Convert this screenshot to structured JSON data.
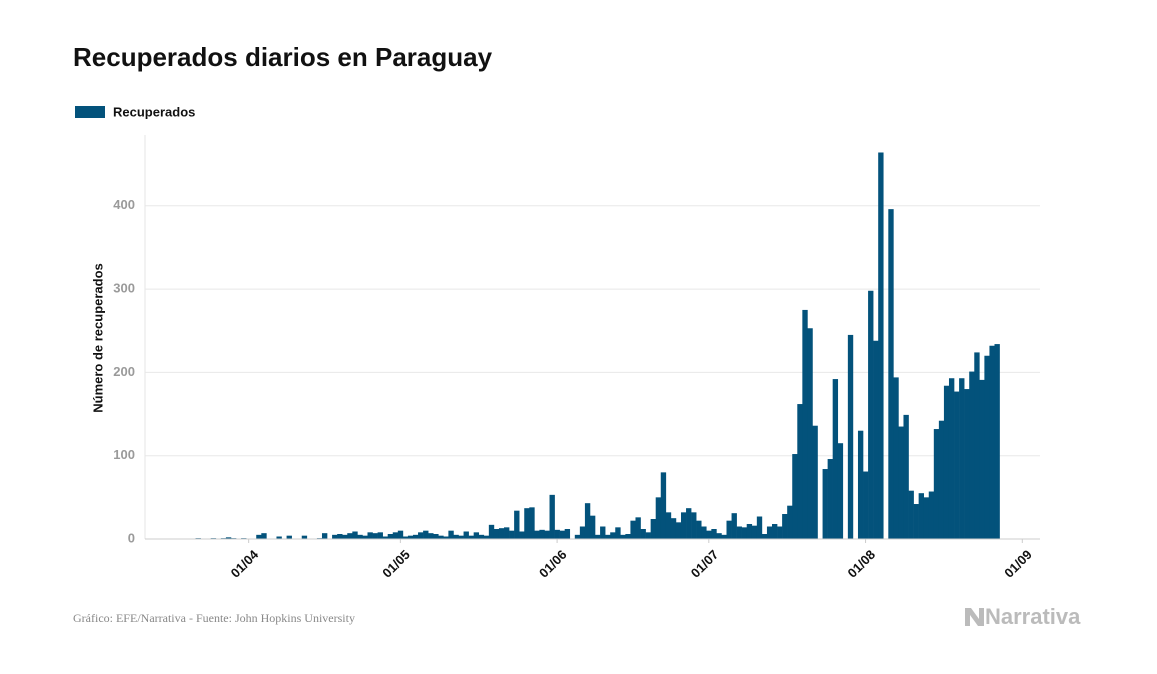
{
  "chart_data": {
    "type": "bar",
    "title": "Recuperados diarios en Paraguay",
    "y_label": "Número de recuperados",
    "source": "Gráfico: EFE/Narrativa - Fuente: John Hopkins University",
    "logo": "Narrativa",
    "legend": "top-left",
    "grid": true,
    "ylim": [
      0,
      485
    ],
    "yticks": [
      0,
      100,
      200,
      300,
      400
    ],
    "xticks": [
      "01/04",
      "01/05",
      "01/06",
      "01/07",
      "01/08",
      "01/09"
    ],
    "categories": [
      "12/03",
      "13/03",
      "14/03",
      "15/03",
      "16/03",
      "17/03",
      "18/03",
      "19/03",
      "20/03",
      "21/03",
      "22/03",
      "23/03",
      "24/03",
      "25/03",
      "26/03",
      "27/03",
      "28/03",
      "29/03",
      "30/03",
      "31/03",
      "01/04",
      "02/04",
      "03/04",
      "04/04",
      "05/04",
      "06/04",
      "07/04",
      "08/04",
      "09/04",
      "10/04",
      "11/04",
      "12/04",
      "13/04",
      "14/04",
      "15/04",
      "16/04",
      "17/04",
      "18/04",
      "19/04",
      "20/04",
      "21/04",
      "22/04",
      "23/04",
      "24/04",
      "25/04",
      "26/04",
      "27/04",
      "28/04",
      "29/04",
      "30/04",
      "01/05",
      "02/05",
      "03/05",
      "04/05",
      "05/05",
      "06/05",
      "07/05",
      "08/05",
      "09/05",
      "10/05",
      "11/05",
      "12/05",
      "13/05",
      "14/05",
      "15/05",
      "16/05",
      "17/05",
      "18/05",
      "19/05",
      "20/05",
      "21/05",
      "22/05",
      "23/05",
      "24/05",
      "25/05",
      "26/05",
      "27/05",
      "28/05",
      "29/05",
      "30/05",
      "31/05",
      "01/06",
      "02/06",
      "03/06",
      "04/06",
      "05/06",
      "06/06",
      "07/06",
      "08/06",
      "09/06",
      "10/06",
      "11/06",
      "12/06",
      "13/06",
      "14/06",
      "15/06",
      "16/06",
      "17/06",
      "18/06",
      "19/06",
      "20/06",
      "21/06",
      "22/06",
      "23/06",
      "24/06",
      "25/06",
      "26/06",
      "27/06",
      "28/06",
      "29/06",
      "30/06",
      "01/07",
      "02/07",
      "03/07",
      "04/07",
      "05/07",
      "06/07",
      "07/07",
      "08/07",
      "09/07",
      "10/07",
      "11/07",
      "12/07",
      "13/07",
      "14/07",
      "15/07",
      "16/07",
      "17/07",
      "18/07",
      "19/07",
      "20/07",
      "21/07",
      "22/07",
      "23/07",
      "24/07",
      "25/07",
      "26/07",
      "27/07",
      "28/07",
      "29/07",
      "30/07",
      "31/07",
      "01/08",
      "02/08",
      "03/08",
      "04/08",
      "05/08",
      "06/08",
      "07/08",
      "08/08",
      "09/08",
      "10/08",
      "11/08",
      "12/08",
      "13/08",
      "14/08",
      "15/08",
      "16/08",
      "17/08",
      "18/08",
      "19/08",
      "20/08",
      "21/08",
      "22/08",
      "23/08",
      "24/08",
      "25/08",
      "26/08",
      "27/08",
      "28/08",
      "29/08",
      "30/08",
      "31/08",
      "01/09",
      "02/09",
      "03/09",
      "04/09"
    ],
    "series": [
      {
        "name": "Recuperados",
        "color": "#03527b",
        "values": [
          null,
          null,
          null,
          null,
          null,
          null,
          null,
          null,
          0,
          0,
          1,
          0,
          0,
          1,
          0,
          1,
          2,
          1,
          0,
          1,
          0,
          0,
          5,
          7,
          0,
          0,
          3,
          0,
          4,
          0,
          0,
          4,
          0,
          0,
          1,
          7,
          0,
          5,
          6,
          5,
          7,
          9,
          5,
          4,
          8,
          7,
          8,
          3,
          6,
          8,
          10,
          3,
          4,
          5,
          8,
          10,
          7,
          6,
          4,
          3,
          10,
          5,
          4,
          9,
          4,
          8,
          5,
          4,
          17,
          12,
          13,
          14,
          10,
          34,
          9,
          37,
          38,
          10,
          11,
          10,
          53,
          11,
          10,
          12,
          null,
          5,
          15,
          43,
          28,
          5,
          15,
          5,
          8,
          14,
          5,
          6,
          22,
          26,
          12,
          8,
          24,
          50,
          80,
          32,
          25,
          20,
          32,
          37,
          32,
          22,
          15,
          10,
          12,
          7,
          5,
          22,
          31,
          15,
          14,
          18,
          16,
          27,
          6,
          15,
          18,
          15,
          30,
          40,
          102,
          162,
          275,
          253,
          136,
          null,
          84,
          96,
          192,
          115,
          null,
          245,
          null,
          130,
          81,
          298,
          238,
          464,
          null,
          396,
          194,
          135,
          149,
          58,
          42,
          55,
          50,
          57,
          132,
          142,
          184,
          193,
          177,
          193,
          180,
          201,
          224,
          191,
          220,
          232,
          234,
          null,
          null,
          null,
          null,
          null,
          null,
          null,
          null
        ]
      }
    ]
  }
}
